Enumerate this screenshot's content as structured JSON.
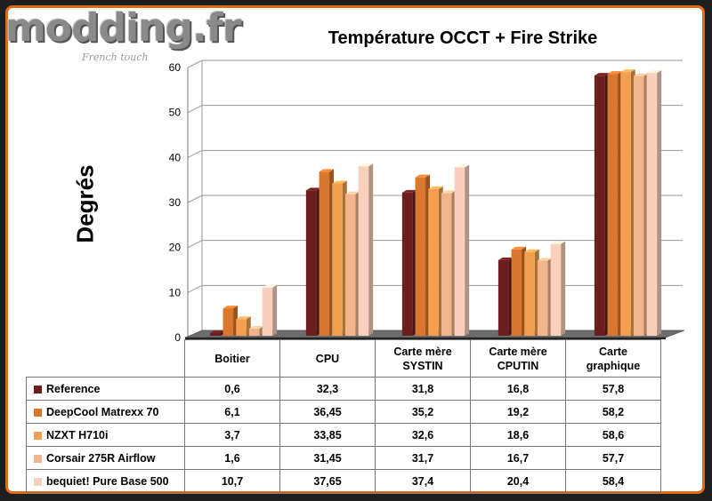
{
  "logo": {
    "text": "modding.fr",
    "tagline": "French touch"
  },
  "chart_data": {
    "type": "bar",
    "title": "Température OCCT + Fire Strike",
    "ylabel": "Degrés",
    "xlabel": "",
    "ylim": [
      0,
      60
    ],
    "yticks": [
      0,
      10,
      20,
      30,
      40,
      50,
      60
    ],
    "grid": true,
    "style": "3d-clustered-columns",
    "categories": [
      "Boitier",
      "CPU",
      "Carte mère SYSTIN",
      "Carte mère CPUTIN",
      "Carte graphique"
    ],
    "category_lines": [
      [
        "Boitier"
      ],
      [
        "CPU"
      ],
      [
        "Carte mère",
        "SYSTIN"
      ],
      [
        "Carte mère",
        "CPUTIN"
      ],
      [
        "Carte",
        "graphique"
      ]
    ],
    "series": [
      {
        "name": "Reference",
        "color": "#6b1e1e",
        "values": [
          0.6,
          32.3,
          31.8,
          16.8,
          57.8
        ],
        "labels": [
          "0,6",
          "32,3",
          "31,8",
          "16,8",
          "57,8"
        ]
      },
      {
        "name": "DeepCool Matrexx 70",
        "color": "#d9772f",
        "values": [
          6.1,
          36.45,
          35.2,
          19.2,
          58.2
        ],
        "labels": [
          "6,1",
          "36,45",
          "35,2",
          "19,2",
          "58,2"
        ]
      },
      {
        "name": "NZXT H710i",
        "color": "#f2a050",
        "values": [
          3.7,
          33.85,
          32.6,
          18.6,
          58.6
        ],
        "labels": [
          "3,7",
          "33,85",
          "32,6",
          "18,6",
          "58,6"
        ]
      },
      {
        "name": "Corsair 275R Airflow",
        "color": "#f2b48c",
        "values": [
          1.6,
          31.45,
          31.7,
          16.7,
          57.7
        ],
        "labels": [
          "1,6",
          "31,45",
          "31,7",
          "16,7",
          "57,7"
        ]
      },
      {
        "name": "bequiet! Pure Base 500",
        "color": "#f8d0bc",
        "values": [
          10.7,
          37.65,
          37.4,
          20.4,
          58.4
        ],
        "labels": [
          "10,7",
          "37,65",
          "37,4",
          "20,4",
          "58,4"
        ]
      }
    ]
  }
}
